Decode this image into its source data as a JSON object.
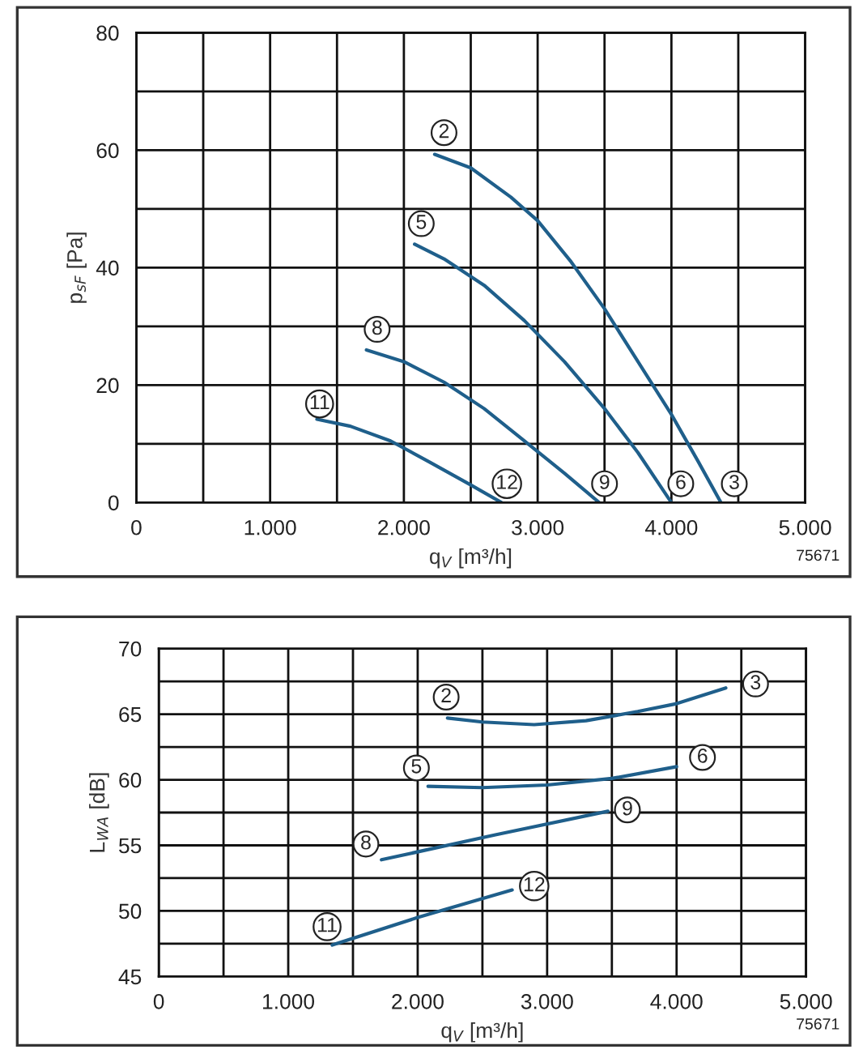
{
  "chart_data": [
    {
      "type": "line",
      "xlabel": "q$_{V}$ [m³/h]",
      "ylabel": "p$_{sF}$ [Pa]",
      "xlim": [
        0,
        5000
      ],
      "ylim": [
        0,
        80
      ],
      "xticks": [
        0,
        {
          "value": 500,
          "label": null
        },
        {
          "value": 1000,
          "label": "1.000"
        },
        {
          "value": 1500,
          "label": null
        },
        {
          "value": 2000,
          "label": "2.000"
        },
        {
          "value": 2500,
          "label": null
        },
        {
          "value": 3000,
          "label": "3.000"
        },
        {
          "value": 3500,
          "label": null
        },
        {
          "value": 4000,
          "label": "4.000"
        },
        {
          "value": 4500,
          "label": null
        },
        {
          "value": 5000,
          "label": "5.000"
        }
      ],
      "yticks": [
        0,
        {
          "value": 10,
          "label": null
        },
        20,
        {
          "value": 30,
          "label": null
        },
        40,
        {
          "value": 50,
          "label": null
        },
        60,
        {
          "value": 70,
          "label": null
        },
        80
      ],
      "grid": true,
      "marker": "none",
      "line_style": "solid",
      "series": [
        {
          "color": "#1f5f8b",
          "x": [
            2230,
            2500,
            2800,
            3000,
            3250,
            3500,
            3750,
            4000,
            4200,
            4370
          ],
          "values": [
            59.3,
            57,
            52,
            48,
            41,
            33,
            24,
            15,
            7,
            0
          ]
        },
        {
          "color": "#1f5f8b",
          "x": [
            2080,
            2300,
            2600,
            2900,
            3200,
            3500,
            3750,
            4000
          ],
          "values": [
            44,
            41.5,
            37,
            31,
            24,
            16,
            8.5,
            0
          ]
        },
        {
          "color": "#1f5f8b",
          "x": [
            1720,
            2000,
            2300,
            2600,
            2900,
            3200,
            3460
          ],
          "values": [
            26,
            24,
            20.5,
            16,
            10.5,
            5,
            0
          ]
        },
        {
          "color": "#1f5f8b",
          "x": [
            1350,
            1600,
            1900,
            2200,
            2500,
            2730
          ],
          "values": [
            14.2,
            13,
            10.5,
            6.8,
            3,
            0
          ]
        }
      ],
      "annotations": [
        {
          "text": "2",
          "x": 2300,
          "y": 63
        },
        {
          "text": "5",
          "x": 2130,
          "y": 47.5
        },
        {
          "text": "8",
          "x": 1800,
          "y": 29.5
        },
        {
          "text": "11",
          "x": 1370,
          "y": 16.8
        },
        {
          "text": "12",
          "x": 2770,
          "y": 3.2
        },
        {
          "text": "9",
          "x": 3500,
          "y": 3.2
        },
        {
          "text": "6",
          "x": 4070,
          "y": 3.2
        },
        {
          "text": "3",
          "x": 4470,
          "y": 3.2
        },
        "75671"
      ]
    },
    {
      "type": "line",
      "xlabel": "q$_{V}$ [m³/h]",
      "ylabel": "L$_{WA}$ [dB]",
      "xlim": [
        0,
        5000
      ],
      "ylim": [
        45,
        70
      ],
      "xticks": [
        0,
        {
          "value": 500,
          "label": null
        },
        {
          "value": 1000,
          "label": "1.000"
        },
        {
          "value": 1500,
          "label": null
        },
        {
          "value": 2000,
          "label": "2.000"
        },
        {
          "value": 2500,
          "label": null
        },
        {
          "value": 3000,
          "label": "3.000"
        },
        {
          "value": 3500,
          "label": null
        },
        {
          "value": 4000,
          "label": "4.000"
        },
        {
          "value": 4500,
          "label": null
        },
        {
          "value": 5000,
          "label": "5.000"
        }
      ],
      "yticks": [
        45,
        {
          "value": 47.5,
          "label": null
        },
        50,
        {
          "value": 52.5,
          "label": null
        },
        55,
        {
          "value": 57.5,
          "label": null
        },
        60,
        {
          "value": 62.5,
          "label": null
        },
        65,
        {
          "value": 67.5,
          "label": null
        },
        70
      ],
      "grid": true,
      "marker": "none",
      "line_style": "solid",
      "series": [
        {
          "color": "#1f5f8b",
          "x": [
            2230,
            2500,
            2900,
            3300,
            3700,
            4000,
            4380
          ],
          "values": [
            64.7,
            64.4,
            64.2,
            64.5,
            65.2,
            65.8,
            67
          ]
        },
        {
          "color": "#1f5f8b",
          "x": [
            2080,
            2500,
            3000,
            3500,
            4000
          ],
          "values": [
            59.5,
            59.4,
            59.6,
            60.1,
            61
          ]
        },
        {
          "color": "#1f5f8b",
          "x": [
            1720,
            2600,
            3470
          ],
          "values": [
            53.9,
            55.8,
            57.6
          ]
        },
        {
          "color": "#1f5f8b",
          "x": [
            1340,
            2000,
            2730
          ],
          "values": [
            47.4,
            49.5,
            51.6
          ]
        }
      ],
      "annotations": [
        {
          "text": "2",
          "x": 2220,
          "y": 66.3
        },
        {
          "text": "3",
          "x": 4610,
          "y": 67.3
        },
        {
          "text": "5",
          "x": 1990,
          "y": 60.9
        },
        {
          "text": "6",
          "x": 4200,
          "y": 61.7
        },
        {
          "text": "8",
          "x": 1600,
          "y": 55.1
        },
        {
          "text": "9",
          "x": 3620,
          "y": 57.7
        },
        {
          "text": "11",
          "x": 1300,
          "y": 48.8
        },
        {
          "text": "12",
          "x": 2900,
          "y": 51.9
        },
        "75671"
      ]
    }
  ]
}
